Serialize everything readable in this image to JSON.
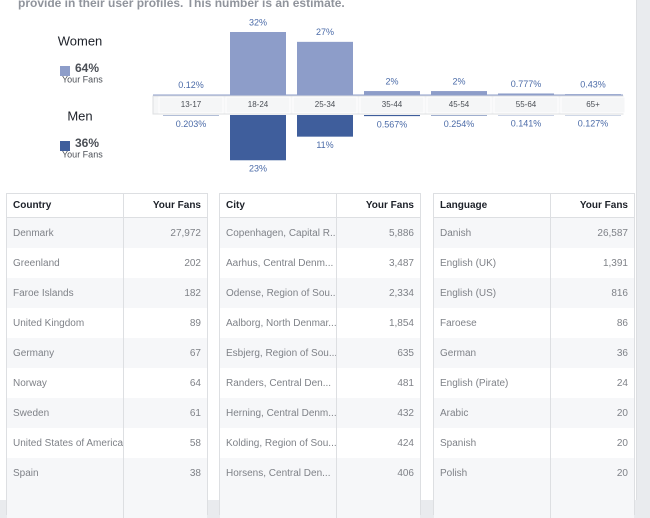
{
  "header": {
    "text": "provide in their user profiles. This number is an estimate."
  },
  "chart_data": {
    "type": "bar",
    "categories": [
      "13-17",
      "18-24",
      "25-34",
      "35-44",
      "45-54",
      "55-64",
      "65+"
    ],
    "series": [
      {
        "name": "Women",
        "color": "#8d9dc9",
        "share": "64%",
        "caption": "Your Fans",
        "values": [
          0.12,
          32,
          27,
          2,
          2,
          0.777,
          0.43
        ],
        "value_labels": [
          "0.12%",
          "32%",
          "27%",
          "2%",
          "2%",
          "0.777%",
          "0.43%"
        ]
      },
      {
        "name": "Men",
        "color": "#3f5e9c",
        "share": "36%",
        "caption": "Your Fans",
        "values": [
          0.203,
          23,
          11,
          0.567,
          0.254,
          0.141,
          0.127
        ],
        "value_labels": [
          "0.203%",
          "23%",
          "11%",
          "0.567%",
          "0.254%",
          "0.141%",
          "0.127%"
        ]
      }
    ]
  },
  "tables": [
    {
      "headers": [
        "Country",
        "Your Fans"
      ],
      "rows": [
        [
          "Denmark",
          "27,972"
        ],
        [
          "Greenland",
          "202"
        ],
        [
          "Faroe Islands",
          "182"
        ],
        [
          "United Kingdom",
          "89"
        ],
        [
          "Germany",
          "67"
        ],
        [
          "Norway",
          "64"
        ],
        [
          "Sweden",
          "61"
        ],
        [
          "United States of America",
          "58"
        ],
        [
          "Spain",
          "38"
        ]
      ]
    },
    {
      "headers": [
        "City",
        "Your Fans"
      ],
      "rows": [
        [
          "Copenhagen, Capital R...",
          "5,886"
        ],
        [
          "Aarhus, Central Denm...",
          "3,487"
        ],
        [
          "Odense, Region of Sou...",
          "2,334"
        ],
        [
          "Aalborg, North Denmar...",
          "1,854"
        ],
        [
          "Esbjerg, Region of Sou...",
          "635"
        ],
        [
          "Randers, Central Den...",
          "481"
        ],
        [
          "Herning, Central Denm...",
          "432"
        ],
        [
          "Kolding, Region of Sou...",
          "424"
        ],
        [
          "Horsens, Central Den...",
          "406"
        ]
      ]
    },
    {
      "headers": [
        "Language",
        "Your Fans"
      ],
      "rows": [
        [
          "Danish",
          "26,587"
        ],
        [
          "English (UK)",
          "1,391"
        ],
        [
          "English (US)",
          "816"
        ],
        [
          "Faroese",
          "86"
        ],
        [
          "German",
          "36"
        ],
        [
          "English (Pirate)",
          "24"
        ],
        [
          "Arabic",
          "20"
        ],
        [
          "Spanish",
          "20"
        ],
        [
          "Polish",
          "20"
        ]
      ]
    }
  ]
}
